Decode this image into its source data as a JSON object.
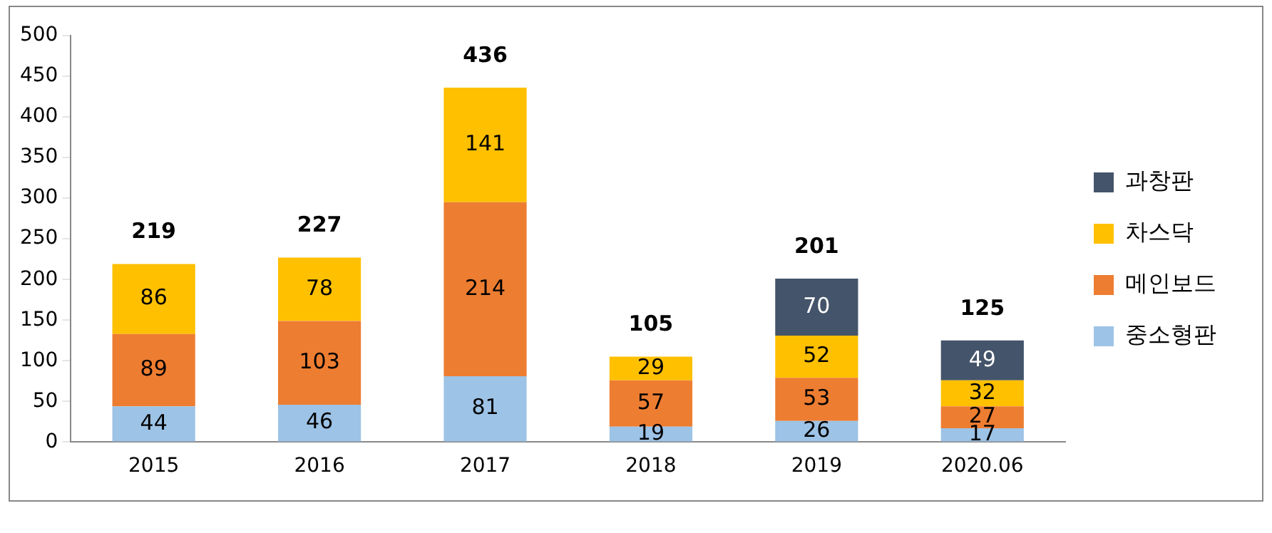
{
  "chart_data": {
    "type": "bar",
    "stacked": true,
    "categories": [
      "2015",
      "2016",
      "2017",
      "2018",
      "2019",
      "2020.06"
    ],
    "series": [
      {
        "name": "중소형판",
        "color": "#9dc3e6",
        "values": [
          44,
          46,
          81,
          19,
          26,
          17
        ]
      },
      {
        "name": "메인보드",
        "color": "#ed7d31",
        "values": [
          89,
          103,
          214,
          57,
          53,
          27
        ]
      },
      {
        "name": "차스닥",
        "color": "#ffc000",
        "values": [
          86,
          78,
          141,
          29,
          52,
          32
        ]
      },
      {
        "name": "과창판",
        "color": "#44546a",
        "values": [
          null,
          null,
          null,
          null,
          70,
          49
        ]
      }
    ],
    "ylim": [
      0,
      500
    ],
    "yticks": [
      0,
      50,
      100,
      150,
      200,
      250,
      300,
      350,
      400,
      450,
      500
    ],
    "grid": false,
    "legend": "right",
    "data_labels": true,
    "totals": [
      "219",
      "227",
      "436",
      "105",
      "201",
      "125"
    ]
  }
}
